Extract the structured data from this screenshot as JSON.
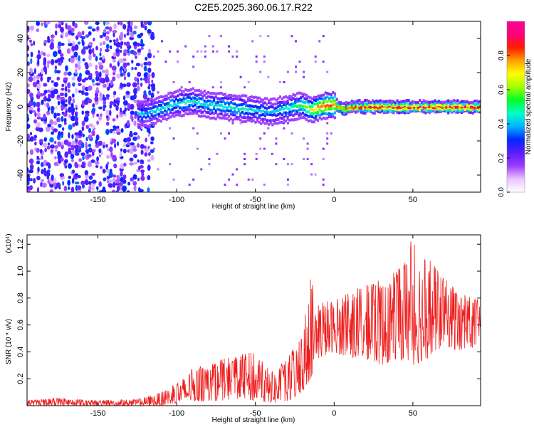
{
  "title": "C2E5.2025.360.06.17.R22",
  "chart_data": [
    {
      "type": "heatmap",
      "xlabel": "Height of straight line (km)",
      "ylabel": "Frequency (Hz)",
      "xlim": [
        -195,
        93
      ],
      "ylim": [
        -50,
        50
      ],
      "xticks": [
        -150,
        -100,
        -50,
        0,
        50
      ],
      "yticks": [
        -40,
        -20,
        0,
        20,
        40
      ],
      "colorbar": {
        "label": "Normalized spectral amplitude",
        "range": [
          0,
          1
        ],
        "ticks": [
          "0.0",
          "0.2",
          "0.4",
          "0.6",
          "0.8"
        ],
        "tick_values": [
          0.0,
          0.2,
          0.4,
          0.6,
          0.8
        ],
        "colors": [
          "#ffffff",
          "#e8c6ff",
          "#9c3cff",
          "#5a1cff",
          "#0028ff",
          "#00b4ff",
          "#00ffc8",
          "#00ff28",
          "#a0ff00",
          "#ffff00",
          "#ffa000",
          "#ff1e00",
          "#ff0078",
          "#ff0096"
        ]
      },
      "ridge": [
        {
          "x": -120,
          "y": -4,
          "amp": 0.45
        },
        {
          "x": -110,
          "y": -1,
          "amp": 0.5
        },
        {
          "x": -100,
          "y": 2,
          "amp": 0.5
        },
        {
          "x": -90,
          "y": 3,
          "amp": 0.5
        },
        {
          "x": -80,
          "y": 1,
          "amp": 0.5
        },
        {
          "x": -70,
          "y": 0,
          "amp": 0.5
        },
        {
          "x": -60,
          "y": -1,
          "amp": 0.5
        },
        {
          "x": -50,
          "y": -2,
          "amp": 0.45
        },
        {
          "x": -40,
          "y": -3,
          "amp": 0.45
        },
        {
          "x": -30,
          "y": -1,
          "amp": 0.5
        },
        {
          "x": -20,
          "y": 1,
          "amp": 0.6
        },
        {
          "x": -15,
          "y": -2,
          "amp": 0.7
        },
        {
          "x": -10,
          "y": 0,
          "amp": 0.8
        },
        {
          "x": 0,
          "y": 1,
          "amp": 0.85
        },
        {
          "x": 5,
          "y": -1,
          "amp": 0.8
        },
        {
          "x": 10,
          "y": 0,
          "amp": 0.9
        },
        {
          "x": 30,
          "y": 0,
          "amp": 0.95
        },
        {
          "x": 60,
          "y": 0,
          "amp": 0.95
        },
        {
          "x": 93,
          "y": 0,
          "amp": 0.95
        }
      ]
    },
    {
      "type": "line",
      "xlabel": "Height of straight line (km)",
      "ylabel": "SNR (10 * v/v)",
      "exponent_label": "(x10⁴)",
      "xlim": [
        -195,
        93
      ],
      "ylim": [
        0,
        1.27
      ],
      "xticks": [
        -150,
        -100,
        -50,
        0,
        50
      ],
      "yticks": [
        0.2,
        0.4,
        0.6,
        0.8,
        1.0,
        1.2
      ],
      "ytick_labels": [
        "0.2",
        "0.4",
        "0.6",
        "0.8",
        "1.0",
        "1.2"
      ],
      "color": "#ee1c1c",
      "envelope": [
        {
          "x": -195,
          "lo": 0.0,
          "hi": 0.04
        },
        {
          "x": -175,
          "lo": 0.0,
          "hi": 0.06
        },
        {
          "x": -150,
          "lo": 0.0,
          "hi": 0.04
        },
        {
          "x": -125,
          "lo": 0.0,
          "hi": 0.05
        },
        {
          "x": -110,
          "lo": 0.0,
          "hi": 0.1
        },
        {
          "x": -100,
          "lo": 0.02,
          "hi": 0.17
        },
        {
          "x": -90,
          "lo": 0.03,
          "hi": 0.28
        },
        {
          "x": -80,
          "lo": 0.03,
          "hi": 0.3
        },
        {
          "x": -70,
          "lo": 0.04,
          "hi": 0.35
        },
        {
          "x": -60,
          "lo": 0.05,
          "hi": 0.38
        },
        {
          "x": -50,
          "lo": 0.03,
          "hi": 0.4
        },
        {
          "x": -40,
          "lo": 0.02,
          "hi": 0.25
        },
        {
          "x": -30,
          "lo": 0.02,
          "hi": 0.35
        },
        {
          "x": -20,
          "lo": 0.1,
          "hi": 0.55
        },
        {
          "x": -15,
          "lo": 0.2,
          "hi": 0.95
        },
        {
          "x": -10,
          "lo": 0.35,
          "hi": 0.8
        },
        {
          "x": 0,
          "lo": 0.4,
          "hi": 0.8
        },
        {
          "x": 10,
          "lo": 0.35,
          "hi": 0.85
        },
        {
          "x": 20,
          "lo": 0.35,
          "hi": 0.9
        },
        {
          "x": 30,
          "lo": 0.3,
          "hi": 0.95
        },
        {
          "x": 40,
          "lo": 0.35,
          "hi": 1.0
        },
        {
          "x": 50,
          "lo": 0.3,
          "hi": 1.27
        },
        {
          "x": 60,
          "lo": 0.35,
          "hi": 1.1
        },
        {
          "x": 70,
          "lo": 0.45,
          "hi": 0.95
        },
        {
          "x": 80,
          "lo": 0.4,
          "hi": 0.85
        },
        {
          "x": 93,
          "lo": 0.45,
          "hi": 0.78
        }
      ]
    }
  ]
}
